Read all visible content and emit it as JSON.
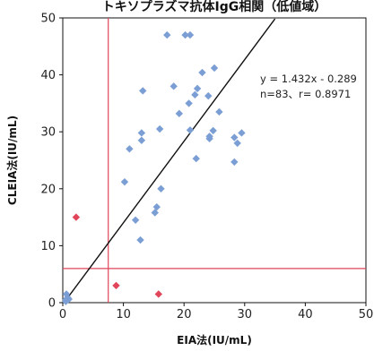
{
  "chart_data": {
    "type": "scatter",
    "title": "トキソプラズマ抗体IgG相関（低値域）",
    "xlabel": "EIA法(IU/mL)",
    "ylabel": "CLEIA法(IU/mL)",
    "xlim": [
      0,
      50
    ],
    "ylim": [
      0,
      50
    ],
    "x_ticks": [
      0,
      10,
      20,
      30,
      40,
      50
    ],
    "y_ticks": [
      0,
      10,
      20,
      30,
      40,
      50
    ],
    "grid": false,
    "legend": "none",
    "cutoff_lines": {
      "x": 7.5,
      "y": 6,
      "color": "#e0455a"
    },
    "regression": {
      "slope": 1.432,
      "intercept": -0.289,
      "x_range": [
        0,
        35
      ],
      "color": "#111111"
    },
    "annotation": [
      "y = 1.432x - 0.289",
      "n=83、r= 0.8971"
    ],
    "series": [
      {
        "color": "#7b9fd4",
        "points": [
          [
            0.5,
            0.5
          ],
          [
            0.6,
            1.5
          ],
          [
            0.8,
            0.9
          ],
          [
            0.5,
            0.2
          ],
          [
            1.0,
            0.6
          ],
          [
            10.2,
            21.2
          ],
          [
            11.0,
            27.0
          ],
          [
            12.0,
            14.5
          ],
          [
            12.8,
            11.0
          ],
          [
            13.0,
            28.5
          ],
          [
            13.2,
            37.2
          ],
          [
            13.0,
            29.8
          ],
          [
            15.2,
            15.8
          ],
          [
            15.5,
            16.8
          ],
          [
            16.0,
            30.5
          ],
          [
            16.2,
            20.0
          ],
          [
            17.2,
            47.0
          ],
          [
            18.3,
            38.0
          ],
          [
            19.2,
            33.2
          ],
          [
            20.2,
            47.0
          ],
          [
            21.0,
            47.0
          ],
          [
            20.8,
            35.0
          ],
          [
            21.0,
            30.3
          ],
          [
            21.8,
            36.5
          ],
          [
            22.2,
            37.6
          ],
          [
            22.0,
            25.3
          ],
          [
            23.0,
            40.4
          ],
          [
            24.0,
            36.3
          ],
          [
            24.2,
            28.8
          ],
          [
            24.2,
            29.2
          ],
          [
            24.8,
            30.2
          ],
          [
            25.0,
            41.2
          ],
          [
            25.8,
            33.5
          ],
          [
            28.3,
            24.7
          ],
          [
            28.3,
            29.0
          ],
          [
            28.8,
            28.0
          ],
          [
            29.5,
            29.8
          ]
        ]
      },
      {
        "color": "#e0455a",
        "points": [
          [
            2.2,
            15.0
          ],
          [
            8.8,
            3.0
          ],
          [
            15.8,
            1.5
          ]
        ]
      }
    ]
  }
}
